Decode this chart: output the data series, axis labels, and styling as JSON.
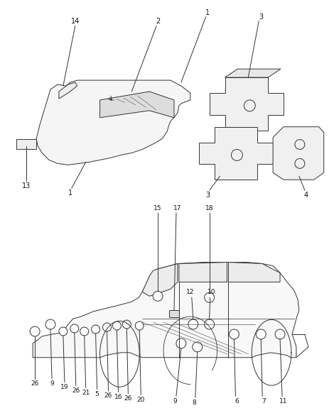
{
  "bg_color": "#ffffff",
  "lc": "#333333",
  "lw": 0.8,
  "figsize": [
    4.7,
    5.89
  ],
  "dpi": 100
}
